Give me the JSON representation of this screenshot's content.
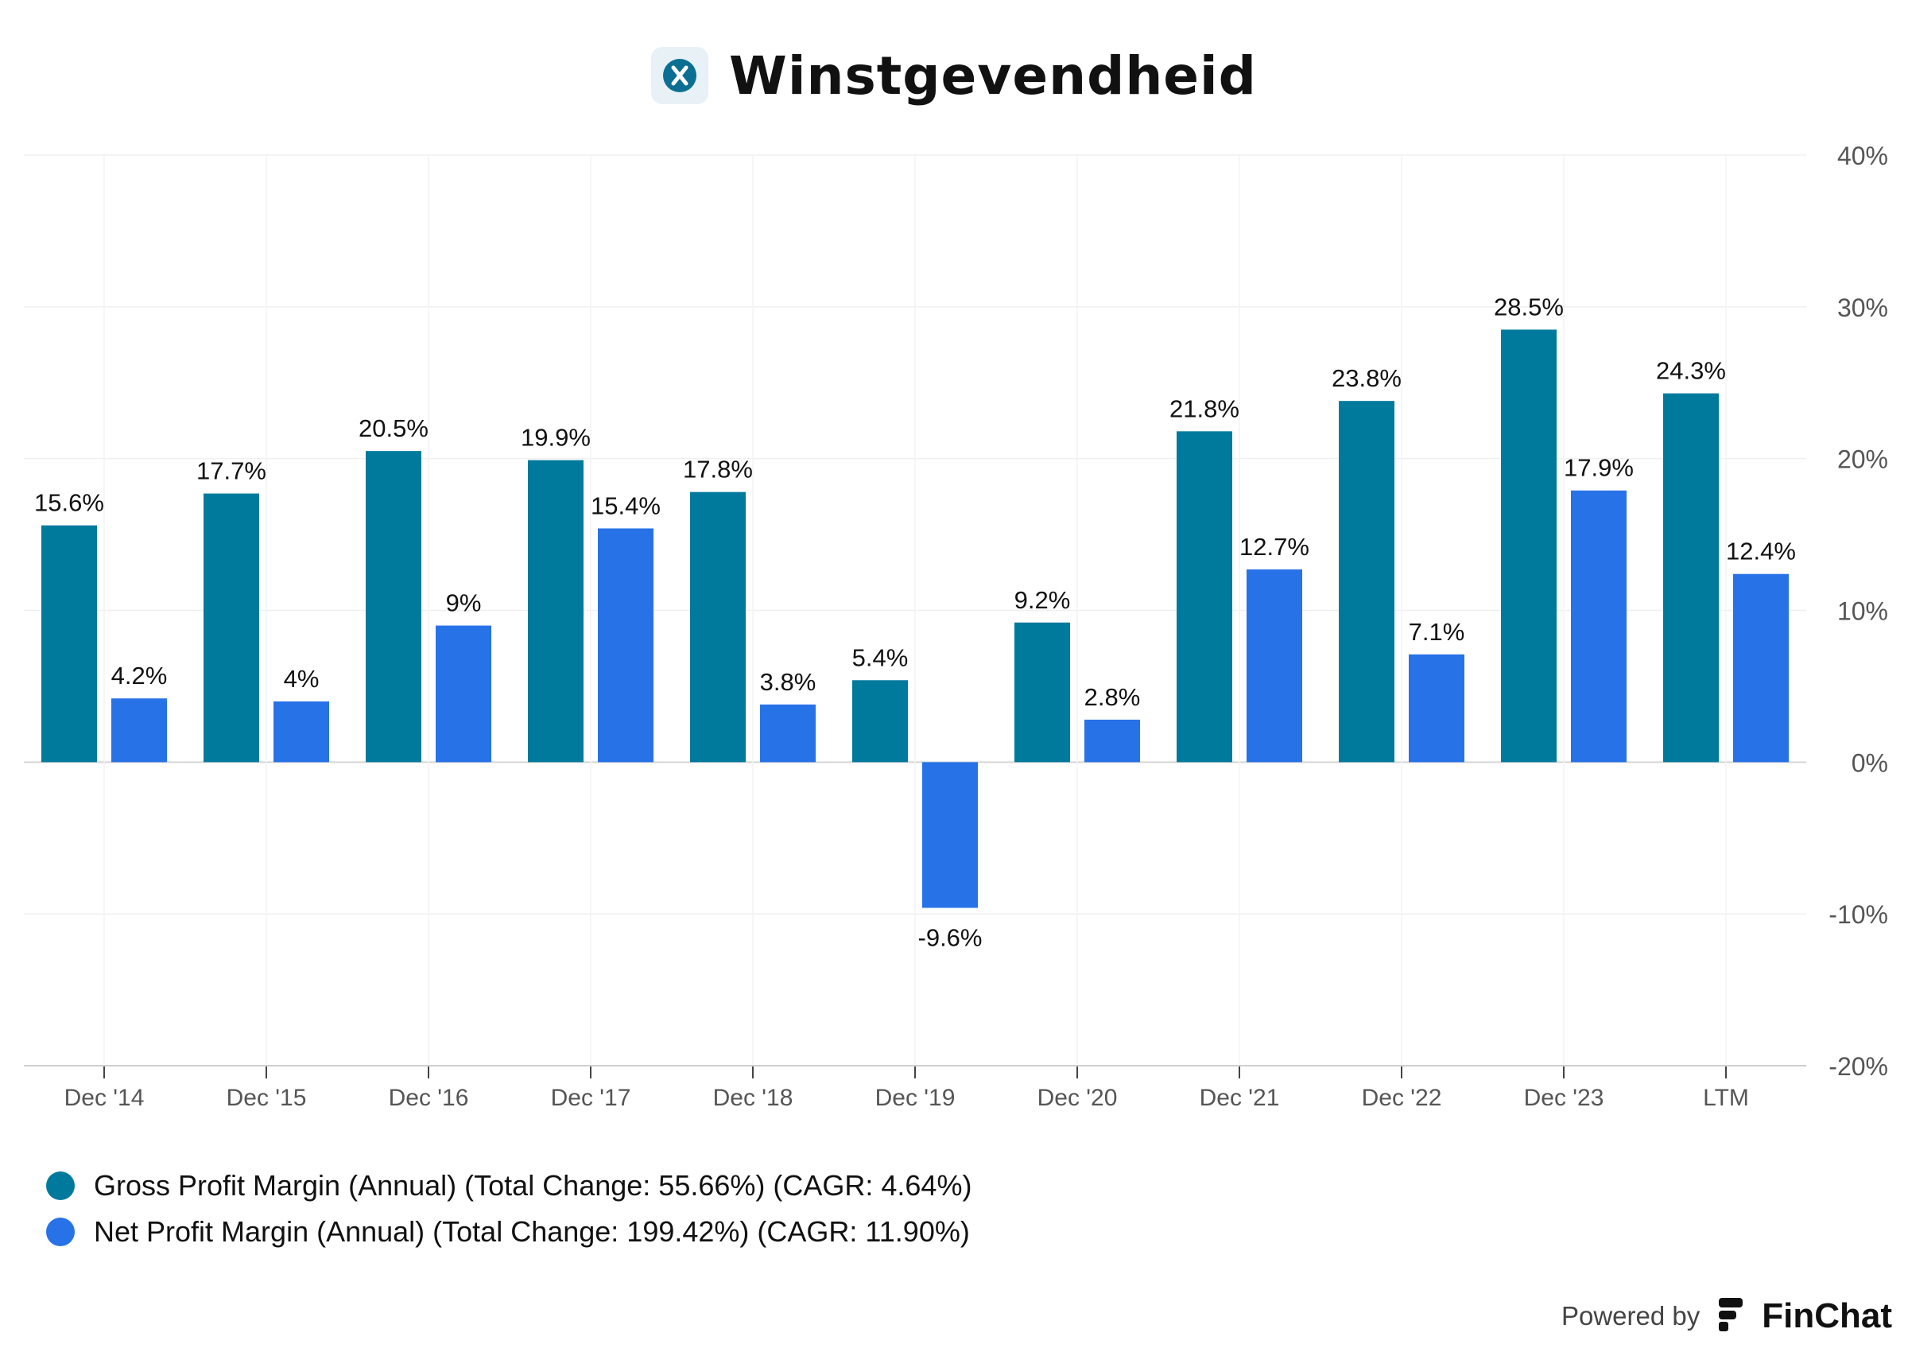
{
  "header": {
    "title": "Winstgevendheid",
    "logo_icon": "x-logo-icon"
  },
  "chart_data": {
    "type": "bar",
    "categories": [
      "Dec '14",
      "Dec '15",
      "Dec '16",
      "Dec '17",
      "Dec '18",
      "Dec '19",
      "Dec '20",
      "Dec '21",
      "Dec '22",
      "Dec '23",
      "LTM"
    ],
    "series": [
      {
        "name": "Gross Profit Margin (Annual) (Total Change: 55.66%) (CAGR: 4.64%)",
        "color": "#007a9c",
        "values": [
          15.6,
          17.7,
          20.5,
          19.9,
          17.8,
          5.4,
          9.2,
          21.8,
          23.8,
          28.5,
          24.3
        ],
        "labels": [
          "15.6%",
          "17.7%",
          "20.5%",
          "19.9%",
          "17.8%",
          "5.4%",
          "9.2%",
          "21.8%",
          "23.8%",
          "28.5%",
          "24.3%"
        ]
      },
      {
        "name": "Net Profit Margin (Annual) (Total Change: 199.42%) (CAGR: 11.90%)",
        "color": "#2872e8",
        "values": [
          4.2,
          4.0,
          9.0,
          15.4,
          3.8,
          -9.6,
          2.8,
          12.7,
          7.1,
          17.9,
          12.4
        ],
        "labels": [
          "4.2%",
          "4%",
          "9%",
          "15.4%",
          "3.8%",
          "-9.6%",
          "2.8%",
          "12.7%",
          "7.1%",
          "17.9%",
          "12.4%"
        ]
      }
    ],
    "ylim": [
      -20,
      40
    ],
    "yticks": [
      40,
      30,
      20,
      10,
      0,
      -10,
      -20
    ],
    "ytick_labels": [
      "40%",
      "30%",
      "20%",
      "10%",
      "0%",
      "-10%",
      "-20%"
    ],
    "y_axis_side": "right",
    "grid": true,
    "legend_position": "bottom-left"
  },
  "footer": {
    "powered_by": "Powered by",
    "brand": "FinChat",
    "brand_icon": "finchat-logo-icon"
  }
}
